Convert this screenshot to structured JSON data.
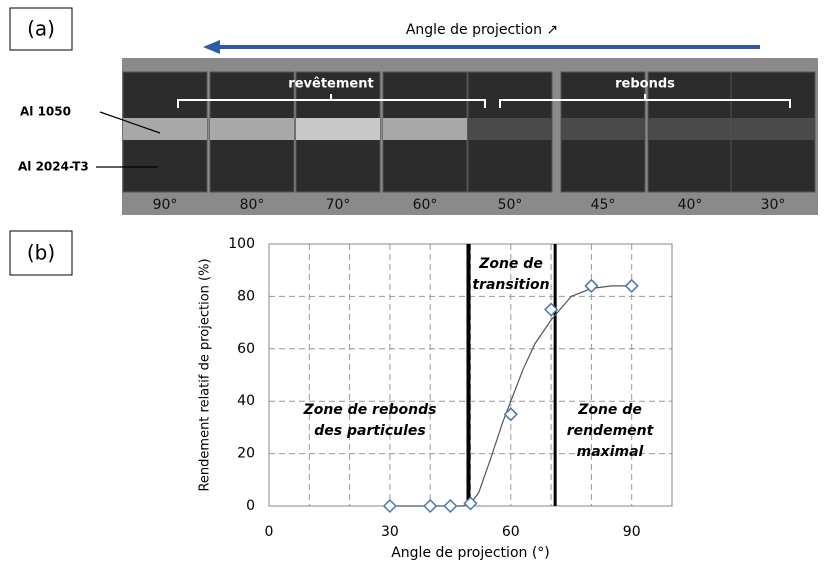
{
  "panel_a": {
    "label": "(a)",
    "direction": "Angle de projection ↗",
    "groups": [
      "revêtement",
      "rebonds"
    ],
    "materials": [
      "Al 1050",
      "Al 2024-T3"
    ],
    "angles": [
      "90°",
      "80°",
      "70°",
      "60°",
      "50°",
      "45°",
      "40°",
      "30°"
    ]
  },
  "panel_b": {
    "label": "(b)"
  },
  "chart_data": {
    "type": "scatter",
    "x_label": "Angle de projection (°)",
    "y_label": "Rendement relatif de projection (%)",
    "x": [
      30,
      40,
      45,
      50,
      60,
      70,
      80,
      90
    ],
    "values": [
      0,
      0,
      0,
      1,
      35,
      75,
      84,
      84
    ],
    "color": "#4a74b4",
    "curve": {
      "x": [
        30,
        40,
        45,
        48,
        50,
        52,
        55,
        58,
        60,
        63,
        66,
        70,
        75,
        80,
        85,
        90
      ],
      "values": [
        0,
        0,
        0,
        0,
        1,
        5,
        18,
        32,
        40,
        52,
        62,
        71,
        80,
        83,
        84,
        84
      ],
      "color": "#555555"
    },
    "xlim": [
      0,
      100
    ],
    "ylim": [
      0,
      100
    ],
    "xticks": [
      0,
      30,
      60,
      90
    ],
    "x_minor_ticks": [
      10,
      20,
      40,
      50,
      70,
      80,
      100
    ],
    "yticks": [
      0,
      20,
      40,
      60,
      80,
      100
    ],
    "grid": true,
    "zone_limits": [
      49.5,
      71
    ],
    "annotations": [
      [
        "Zone de rebonds",
        "des particules"
      ],
      [
        "Zone de",
        "transition"
      ],
      [
        "Zone de",
        "rendement",
        "maximal"
      ]
    ]
  }
}
